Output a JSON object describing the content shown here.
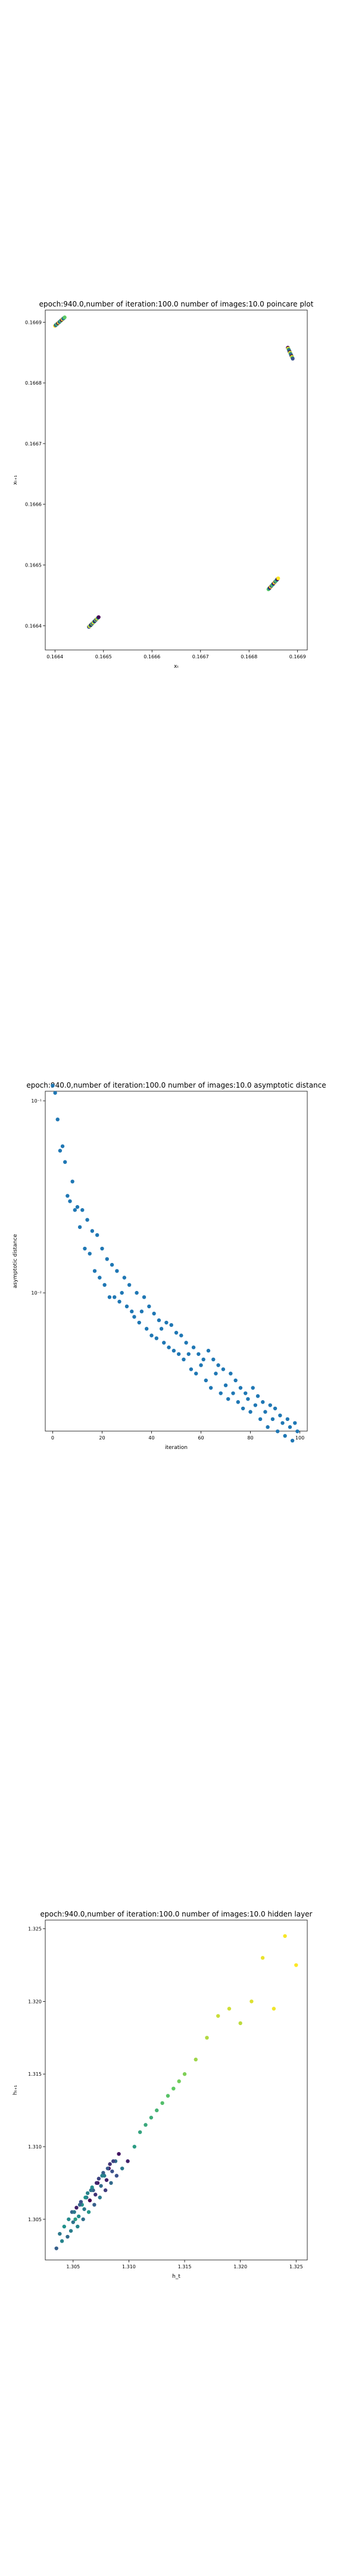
{
  "chart_data": [
    {
      "type": "scatter",
      "title": "epoch:940.0,number of iteration:100.0 number of images:10.0 poincare plot",
      "xlabel": "xₜ",
      "ylabel": "xₜ₊₁",
      "xlim": [
        0.16638,
        0.16692
      ],
      "ylim": [
        0.16636,
        0.16692
      ],
      "xticks": [
        "0.1664",
        "0.1665",
        "0.1666",
        "0.1667",
        "0.1668",
        "0.1669"
      ],
      "yticks": [
        "0.1664",
        "0.1665",
        "0.1666",
        "0.1667",
        "0.1668",
        "0.1669"
      ],
      "xtick_values": [
        0.1664,
        0.1665,
        0.1666,
        0.1667,
        0.1668,
        0.1669
      ],
      "ytick_values": [
        0.1664,
        0.1665,
        0.1666,
        0.1667,
        0.1668,
        0.1669
      ],
      "clusters": [
        {
          "x0": 0.1664,
          "y0": 0.166894,
          "x1": 0.16642,
          "y1": 0.166908,
          "colors": [
            "#fde725",
            "#3b528b",
            "#21918c",
            "#5ec962",
            "#440154"
          ]
        },
        {
          "x0": 0.16647,
          "y0": 0.166398,
          "x1": 0.16649,
          "y1": 0.166414,
          "colors": [
            "#3b528b",
            "#fde725",
            "#21918c",
            "#440154",
            "#5ec962"
          ]
        },
        {
          "x0": 0.16684,
          "y0": 0.16646,
          "x1": 0.16686,
          "y1": 0.166478,
          "colors": [
            "#5ec962",
            "#21918c",
            "#440154",
            "#fde725",
            "#3b528b"
          ]
        },
        {
          "x0": 0.16688,
          "y0": 0.166858,
          "x1": 0.16689,
          "y1": 0.16684,
          "colors": [
            "#440154",
            "#fde725",
            "#5ec962",
            "#3b528b",
            "#21918c"
          ]
        }
      ]
    },
    {
      "type": "scatter",
      "title": "epoch:940.0,number of iteration:100.0  number of images:10.0 asymptotic distance",
      "xlabel": "iteration",
      "ylabel": "asymptotic distance",
      "yscale": "log",
      "xlim": [
        -3,
        103
      ],
      "ylim_log10": [
        -2.72,
        -0.95
      ],
      "xticks": [
        "0",
        "20",
        "40",
        "60",
        "80",
        "100"
      ],
      "xtick_values": [
        0,
        20,
        40,
        60,
        80,
        100
      ],
      "yticks": [
        "10⁻¹",
        "10⁻²"
      ],
      "ytick_log10": [
        -1,
        -2
      ],
      "color": "#1f77b4",
      "x": [
        0,
        1,
        2,
        3,
        4,
        5,
        6,
        7,
        8,
        9,
        10,
        11,
        12,
        13,
        14,
        15,
        16,
        17,
        18,
        19,
        20,
        21,
        22,
        23,
        24,
        25,
        26,
        27,
        28,
        29,
        30,
        31,
        32,
        33,
        34,
        35,
        36,
        37,
        38,
        39,
        40,
        41,
        42,
        43,
        44,
        45,
        46,
        47,
        48,
        49,
        50,
        51,
        52,
        53,
        54,
        55,
        56,
        57,
        58,
        59,
        60,
        61,
        62,
        63,
        64,
        65,
        66,
        67,
        68,
        69,
        70,
        71,
        72,
        73,
        74,
        75,
        76,
        77,
        78,
        79,
        80,
        81,
        82,
        83,
        84,
        85,
        86,
        87,
        88,
        89,
        90,
        91,
        92,
        93,
        94,
        95,
        96,
        97,
        98,
        99
      ],
      "y": [
        0.12,
        0.11,
        0.08,
        0.055,
        0.058,
        0.048,
        0.032,
        0.03,
        0.038,
        0.027,
        0.028,
        0.022,
        0.027,
        0.017,
        0.024,
        0.016,
        0.021,
        0.013,
        0.02,
        0.012,
        0.017,
        0.011,
        0.015,
        0.0095,
        0.014,
        0.0095,
        0.013,
        0.009,
        0.01,
        0.012,
        0.0085,
        0.011,
        0.008,
        0.0075,
        0.01,
        0.007,
        0.008,
        0.0095,
        0.0065,
        0.0085,
        0.006,
        0.0078,
        0.0058,
        0.0072,
        0.0065,
        0.0055,
        0.007,
        0.0052,
        0.0068,
        0.005,
        0.0062,
        0.0048,
        0.006,
        0.0045,
        0.0055,
        0.0048,
        0.004,
        0.0052,
        0.0038,
        0.0048,
        0.0042,
        0.0045,
        0.0035,
        0.005,
        0.0032,
        0.0045,
        0.0038,
        0.0042,
        0.003,
        0.004,
        0.0033,
        0.0028,
        0.0038,
        0.003,
        0.0035,
        0.0027,
        0.0032,
        0.0025,
        0.003,
        0.0028,
        0.0024,
        0.0032,
        0.0026,
        0.0029,
        0.0022,
        0.0027,
        0.0024,
        0.002,
        0.0026,
        0.0022,
        0.0025,
        0.0019,
        0.0023,
        0.0021,
        0.0018,
        0.0022,
        0.002,
        0.0017,
        0.0021,
        0.0019
      ]
    },
    {
      "type": "scatter",
      "title": "epoch:940.0,number of iteration:100.0  number of images:10.0 hidden layer",
      "xlabel": "h_t",
      "ylabel": "hₜ₊₁",
      "xlim": [
        1.3025,
        1.326
      ],
      "ylim": [
        1.3022,
        1.3256
      ],
      "xticks": [
        "1.305",
        "1.310",
        "1.315",
        "1.320",
        "1.325"
      ],
      "yticks": [
        "1.305",
        "1.310",
        "1.315",
        "1.320",
        "1.325"
      ],
      "xtick_values": [
        1.305,
        1.31,
        1.315,
        1.32,
        1.325
      ],
      "ytick_values": [
        1.305,
        1.31,
        1.315,
        1.32,
        1.325
      ],
      "x": [
        1.3035,
        1.304,
        1.3038,
        1.3045,
        1.3042,
        1.3048,
        1.305,
        1.3052,
        1.3049,
        1.3055,
        1.3053,
        1.3058,
        1.306,
        1.3057,
        1.3062,
        1.3065,
        1.3063,
        1.3068,
        1.307,
        1.3067,
        1.3072,
        1.3075,
        1.3073,
        1.3078,
        1.308,
        1.3077,
        1.3082,
        1.3085,
        1.3083,
        1.3088,
        1.3046,
        1.3051,
        1.3056,
        1.3061,
        1.3066,
        1.3071,
        1.3076,
        1.3081,
        1.3086,
        1.3091,
        1.3054,
        1.3059,
        1.3064,
        1.3069,
        1.3074,
        1.3079,
        1.3084,
        1.3089,
        1.3094,
        1.3099,
        1.3105,
        1.311,
        1.3115,
        1.312,
        1.3125,
        1.313,
        1.3135,
        1.314,
        1.3145,
        1.315,
        1.316,
        1.317,
        1.318,
        1.319,
        1.32,
        1.321,
        1.322,
        1.323,
        1.324,
        1.325
      ],
      "y": [
        1.303,
        1.3035,
        1.304,
        1.3038,
        1.3045,
        1.3042,
        1.3048,
        1.305,
        1.3055,
        1.3052,
        1.3058,
        1.306,
        1.3057,
        1.3062,
        1.3065,
        1.3063,
        1.3068,
        1.307,
        1.3067,
        1.3072,
        1.3075,
        1.3073,
        1.3078,
        1.308,
        1.3077,
        1.3082,
        1.3085,
        1.3083,
        1.3088,
        1.309,
        1.305,
        1.3055,
        1.306,
        1.3065,
        1.307,
        1.3075,
        1.308,
        1.3085,
        1.309,
        1.3095,
        1.3045,
        1.305,
        1.3055,
        1.306,
        1.3065,
        1.307,
        1.3075,
        1.308,
        1.3085,
        1.309,
        1.31,
        1.311,
        1.3115,
        1.312,
        1.3125,
        1.313,
        1.3135,
        1.314,
        1.3145,
        1.315,
        1.316,
        1.3175,
        1.319,
        1.3195,
        1.3185,
        1.32,
        1.323,
        1.3195,
        1.3245,
        1.3225
      ],
      "c": [
        0.3,
        0.45,
        0.4,
        0.35,
        0.5,
        0.42,
        0.38,
        0.55,
        0.33,
        0.48,
        0.1,
        0.52,
        0.4,
        0.25,
        0.36,
        0.0,
        0.44,
        0.3,
        0.15,
        0.48,
        0.05,
        0.35,
        0.2,
        0.42,
        0.1,
        0.3,
        0.0,
        0.25,
        0.15,
        0.35,
        0.47,
        0.4,
        0.32,
        0.5,
        0.38,
        0.12,
        0.44,
        0.28,
        0.2,
        0.06,
        0.45,
        0.36,
        0.52,
        0.3,
        0.4,
        0.18,
        0.34,
        0.25,
        0.4,
        0.1,
        0.55,
        0.58,
        0.6,
        0.62,
        0.65,
        0.7,
        0.72,
        0.75,
        0.78,
        0.8,
        0.85,
        0.88,
        0.92,
        0.93,
        0.9,
        0.95,
        0.97,
        0.98,
        0.99,
        1.0
      ]
    }
  ]
}
